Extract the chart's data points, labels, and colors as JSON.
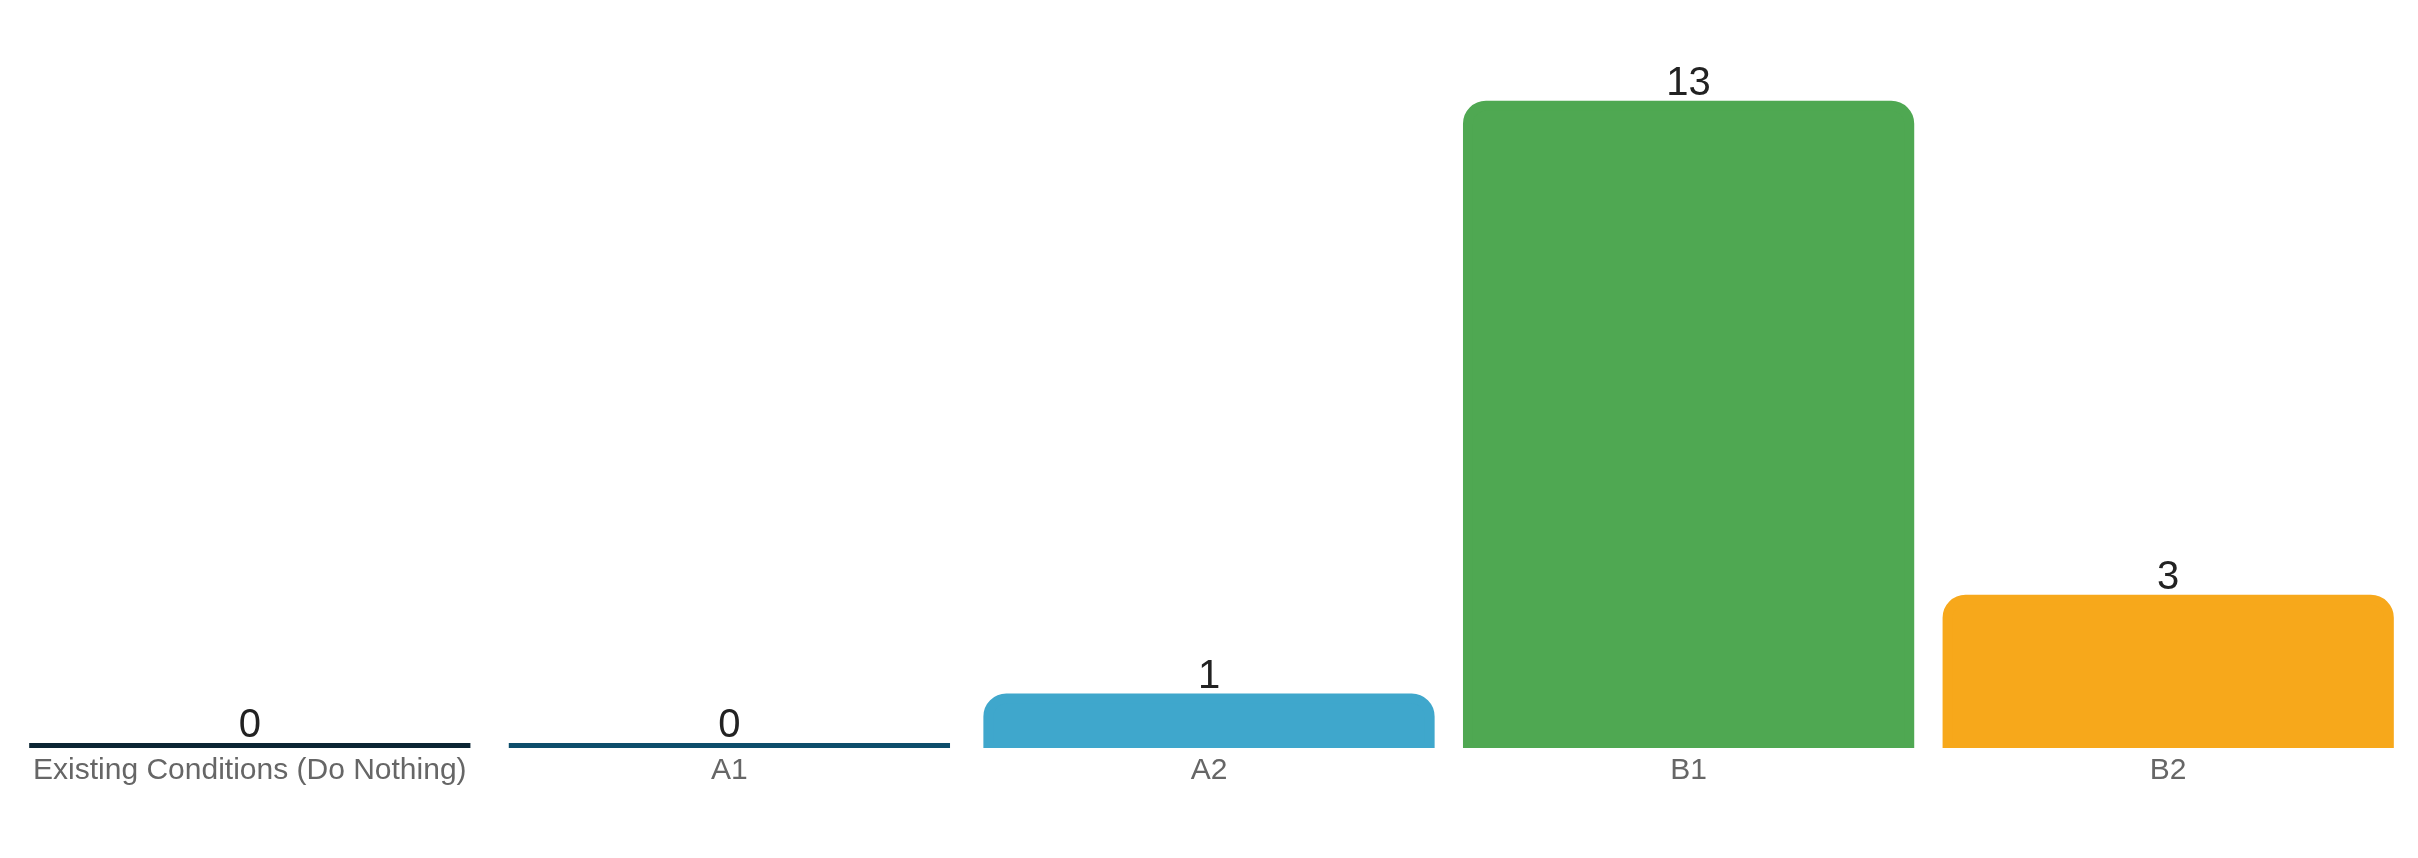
{
  "chart_data": {
    "type": "bar",
    "categories": [
      "Existing Conditions (Do Nothing)",
      "A1",
      "A2",
      "B1",
      "B2"
    ],
    "values": [
      0,
      0,
      1,
      13,
      3
    ],
    "colors": [
      "#0b2533",
      "#0d4d6b",
      "#3fa7cc",
      "#4fa852",
      "#f7a81b"
    ],
    "data_labels": true
  }
}
